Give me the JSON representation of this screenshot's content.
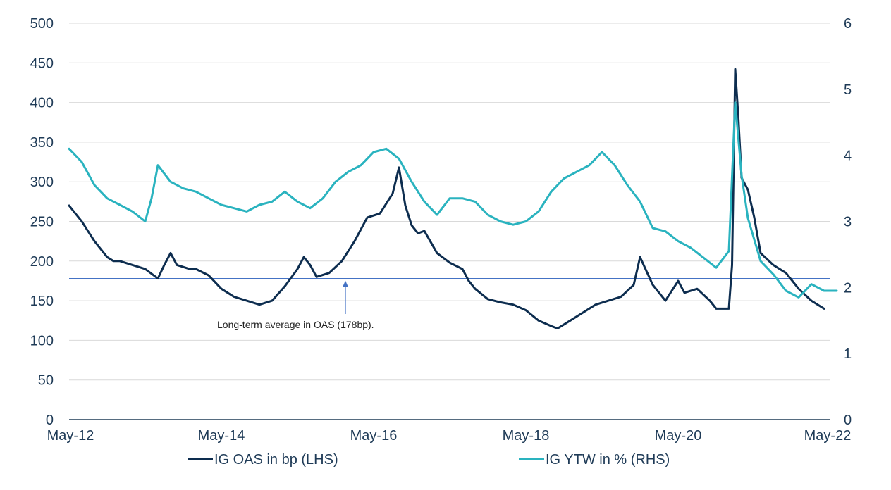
{
  "chart_data": {
    "type": "line",
    "title": "",
    "x_ticks": [
      "May-12",
      "May-14",
      "May-16",
      "May-18",
      "May-20",
      "May-22"
    ],
    "x_range": [
      "2012-05",
      "2022-05"
    ],
    "y_left": {
      "ticks": [
        "0",
        "50",
        "100",
        "150",
        "200",
        "250",
        "300",
        "350",
        "400",
        "450",
        "500"
      ],
      "range": [
        0,
        500
      ]
    },
    "y_right": {
      "ticks": [
        "0",
        "1",
        "2",
        "3",
        "4",
        "5",
        "6"
      ],
      "range": [
        0,
        6
      ]
    },
    "grid": "horizontal",
    "legend_position": "bottom",
    "colors": {
      "oas": "#0d2d4f",
      "ytw": "#2ab3bf",
      "average_line": "#4472c4",
      "grid": "#d9d9d9",
      "axis": "#1f3b57"
    },
    "series": [
      {
        "name": "IG OAS in bp (LHS)",
        "axis": "left",
        "points": [
          [
            "2012-05",
            270
          ],
          [
            "2012-07",
            250
          ],
          [
            "2012-09",
            225
          ],
          [
            "2012-11",
            205
          ],
          [
            "2012-12",
            200
          ],
          [
            "2013-01",
            200
          ],
          [
            "2013-03",
            195
          ],
          [
            "2013-05",
            190
          ],
          [
            "2013-07",
            178
          ],
          [
            "2013-08",
            195
          ],
          [
            "2013-09",
            210
          ],
          [
            "2013-10",
            195
          ],
          [
            "2013-12",
            190
          ],
          [
            "2014-01",
            190
          ],
          [
            "2014-03",
            182
          ],
          [
            "2014-05",
            165
          ],
          [
            "2014-07",
            155
          ],
          [
            "2014-09",
            150
          ],
          [
            "2014-11",
            145
          ],
          [
            "2015-01",
            150
          ],
          [
            "2015-03",
            168
          ],
          [
            "2015-05",
            190
          ],
          [
            "2015-06",
            205
          ],
          [
            "2015-07",
            195
          ],
          [
            "2015-08",
            180
          ],
          [
            "2015-10",
            185
          ],
          [
            "2015-12",
            200
          ],
          [
            "2016-02",
            225
          ],
          [
            "2016-04",
            255
          ],
          [
            "2016-06",
            260
          ],
          [
            "2016-08",
            285
          ],
          [
            "2016-09",
            318
          ],
          [
            "2016-10",
            270
          ],
          [
            "2016-11",
            245
          ],
          [
            "2016-12",
            235
          ],
          [
            "2017-01",
            238
          ],
          [
            "2017-03",
            210
          ],
          [
            "2017-05",
            198
          ],
          [
            "2017-07",
            190
          ],
          [
            "2017-08",
            175
          ],
          [
            "2017-09",
            165
          ],
          [
            "2017-11",
            152
          ],
          [
            "2018-01",
            148
          ],
          [
            "2018-03",
            145
          ],
          [
            "2018-05",
            138
          ],
          [
            "2018-07",
            125
          ],
          [
            "2018-09",
            118
          ],
          [
            "2018-10",
            115
          ],
          [
            "2018-12",
            125
          ],
          [
            "2019-02",
            135
          ],
          [
            "2019-04",
            145
          ],
          [
            "2019-06",
            150
          ],
          [
            "2019-08",
            155
          ],
          [
            "2019-10",
            170
          ],
          [
            "2019-11",
            205
          ],
          [
            "2020-01",
            170
          ],
          [
            "2020-03",
            150
          ],
          [
            "2020-05",
            175
          ],
          [
            "2020-06",
            160
          ],
          [
            "2020-08",
            165
          ],
          [
            "2020-10",
            150
          ],
          [
            "2020-11",
            140
          ],
          [
            "2021-01",
            140
          ],
          [
            "2021-01.5",
            195
          ],
          [
            "2021-02",
            442
          ],
          [
            "2021-02.5",
            380
          ],
          [
            "2021-03",
            305
          ],
          [
            "2021-04",
            290
          ],
          [
            "2021-05",
            255
          ],
          [
            "2021-06",
            210
          ],
          [
            "2021-08",
            195
          ],
          [
            "2021-10",
            185
          ],
          [
            "2021-12",
            165
          ],
          [
            "2022-02",
            150
          ],
          [
            "2022-04",
            140
          ]
        ]
      },
      {
        "name": "IG YTW in % (RHS)",
        "axis": "right",
        "points": [
          [
            "2012-05",
            4.1
          ],
          [
            "2012-07",
            3.9
          ],
          [
            "2012-09",
            3.55
          ],
          [
            "2012-11",
            3.35
          ],
          [
            "2013-01",
            3.25
          ],
          [
            "2013-03",
            3.15
          ],
          [
            "2013-05",
            3.0
          ],
          [
            "2013-06",
            3.35
          ],
          [
            "2013-07",
            3.85
          ],
          [
            "2013-09",
            3.6
          ],
          [
            "2013-11",
            3.5
          ],
          [
            "2014-01",
            3.45
          ],
          [
            "2014-03",
            3.35
          ],
          [
            "2014-05",
            3.25
          ],
          [
            "2014-07",
            3.2
          ],
          [
            "2014-09",
            3.15
          ],
          [
            "2014-11",
            3.25
          ],
          [
            "2015-01",
            3.3
          ],
          [
            "2015-03",
            3.45
          ],
          [
            "2015-05",
            3.3
          ],
          [
            "2015-07",
            3.2
          ],
          [
            "2015-09",
            3.35
          ],
          [
            "2015-11",
            3.6
          ],
          [
            "2016-01",
            3.75
          ],
          [
            "2016-03",
            3.85
          ],
          [
            "2016-05",
            4.05
          ],
          [
            "2016-07",
            4.1
          ],
          [
            "2016-09",
            3.95
          ],
          [
            "2016-11",
            3.6
          ],
          [
            "2017-01",
            3.3
          ],
          [
            "2017-03",
            3.1
          ],
          [
            "2017-05",
            3.35
          ],
          [
            "2017-07",
            3.35
          ],
          [
            "2017-09",
            3.3
          ],
          [
            "2017-11",
            3.1
          ],
          [
            "2018-01",
            3.0
          ],
          [
            "2018-03",
            2.95
          ],
          [
            "2018-05",
            3.0
          ],
          [
            "2018-07",
            3.15
          ],
          [
            "2018-09",
            3.45
          ],
          [
            "2018-11",
            3.65
          ],
          [
            "2019-01",
            3.75
          ],
          [
            "2019-03",
            3.85
          ],
          [
            "2019-05",
            4.05
          ],
          [
            "2019-07",
            3.85
          ],
          [
            "2019-09",
            3.55
          ],
          [
            "2019-11",
            3.3
          ],
          [
            "2020-01",
            2.9
          ],
          [
            "2020-03",
            2.85
          ],
          [
            "2020-05",
            2.7
          ],
          [
            "2020-07",
            2.6
          ],
          [
            "2020-09",
            2.45
          ],
          [
            "2020-11",
            2.3
          ],
          [
            "2021-01",
            2.55
          ],
          [
            "2021-02",
            4.8
          ],
          [
            "2021-03",
            3.7
          ],
          [
            "2021-04",
            3.05
          ],
          [
            "2021-06",
            2.4
          ],
          [
            "2021-08",
            2.2
          ],
          [
            "2021-10",
            1.95
          ],
          [
            "2021-12",
            1.85
          ],
          [
            "2022-02",
            2.05
          ],
          [
            "2022-04",
            1.95
          ],
          [
            "2022-06",
            1.95
          ]
        ]
      }
    ],
    "annotations": [
      {
        "text": "Long-term average in OAS (178bp).",
        "type": "horizontal_line",
        "axis": "left",
        "value": 178
      }
    ]
  }
}
